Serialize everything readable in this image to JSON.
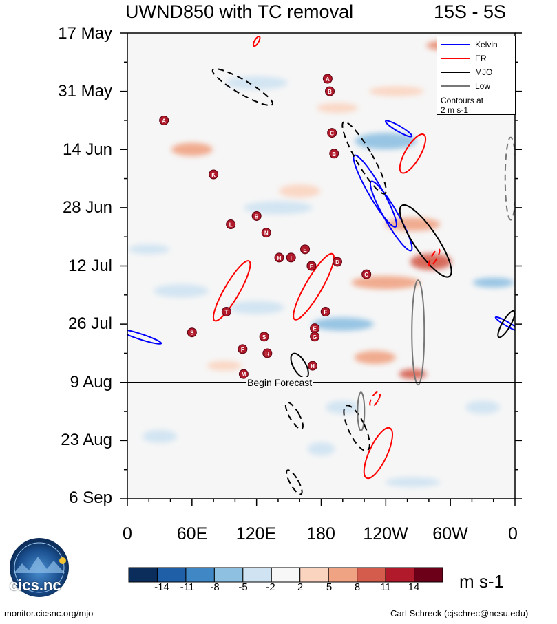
{
  "chart_data": {
    "type": "heatmap",
    "title": "UWND850 with TC removal",
    "region": "15S - 5S",
    "x_axis": {
      "ticks": [
        "0",
        "60E",
        "120E",
        "180",
        "120W",
        "60W",
        "0"
      ],
      "range_deg": [
        0,
        360
      ]
    },
    "y_axis": {
      "ticks": [
        "17 May",
        "31 May",
        "14 Jun",
        "28 Jun",
        "12 Jul",
        "26 Jul",
        "9 Aug",
        "23 Aug",
        "6 Sep"
      ],
      "range_days": [
        0,
        112
      ]
    },
    "forecast_label": "Begin Forecast",
    "forecast_day": 84,
    "legend": [
      {
        "name": "Kelvin",
        "color": "#0000ff"
      },
      {
        "name": "ER",
        "color": "#ff0000"
      },
      {
        "name": "MJO",
        "color": "#000000"
      },
      {
        "name": "Low",
        "color": "#777777"
      }
    ],
    "legend_note": [
      "Contours at",
      "2 m s-1"
    ],
    "colorbar": {
      "labels": [
        "-14",
        "-11",
        "-8",
        "-5",
        "-2",
        "2",
        "5",
        "8",
        "11",
        "14"
      ],
      "colors": [
        "#0b2d5c",
        "#1f5fa8",
        "#3f88c5",
        "#8ec0e2",
        "#cfe3f2",
        "#f7f7f7",
        "#fbd4c0",
        "#f0a383",
        "#d35c4c",
        "#b01a2a",
        "#6b0018"
      ],
      "units": "m s-1"
    },
    "storms": [
      {
        "letter": "A",
        "lon": 186,
        "day": 11
      },
      {
        "letter": "B",
        "lon": 188,
        "day": 14
      },
      {
        "letter": "A",
        "lon": 34,
        "day": 21
      },
      {
        "letter": "C",
        "lon": 190,
        "day": 24
      },
      {
        "letter": "B",
        "lon": 192,
        "day": 29
      },
      {
        "letter": "K",
        "lon": 80,
        "day": 34
      },
      {
        "letter": "B",
        "lon": 120,
        "day": 44
      },
      {
        "letter": "L",
        "lon": 96,
        "day": 46
      },
      {
        "letter": "N",
        "lon": 129,
        "day": 48
      },
      {
        "letter": "E",
        "lon": 165,
        "day": 52
      },
      {
        "letter": "H",
        "lon": 141,
        "day": 54
      },
      {
        "letter": "I",
        "lon": 152,
        "day": 54
      },
      {
        "letter": "D",
        "lon": 195,
        "day": 55
      },
      {
        "letter": "E",
        "lon": 171,
        "day": 56
      },
      {
        "letter": "C",
        "lon": 222,
        "day": 58
      },
      {
        "letter": "T",
        "lon": 92,
        "day": 67
      },
      {
        "letter": "F",
        "lon": 184,
        "day": 67
      },
      {
        "letter": "E",
        "lon": 174,
        "day": 71
      },
      {
        "letter": "S",
        "lon": 60,
        "day": 72
      },
      {
        "letter": "G",
        "lon": 174,
        "day": 73
      },
      {
        "letter": "S",
        "lon": 127,
        "day": 73
      },
      {
        "letter": "F",
        "lon": 107,
        "day": 76
      },
      {
        "letter": "R",
        "lon": 130,
        "day": 77
      },
      {
        "letter": "H",
        "lon": 172,
        "day": 80
      },
      {
        "letter": "M",
        "lon": 108,
        "day": 82
      }
    ]
  },
  "credits": {
    "left": "monitor.cicsnc.org/mjo",
    "right": "Carl Schreck (cjschrec@ncsu.edu)",
    "logo_text": "cics.nc",
    "logo_ring": "Cooperative Institute for Climate and Satellites"
  }
}
